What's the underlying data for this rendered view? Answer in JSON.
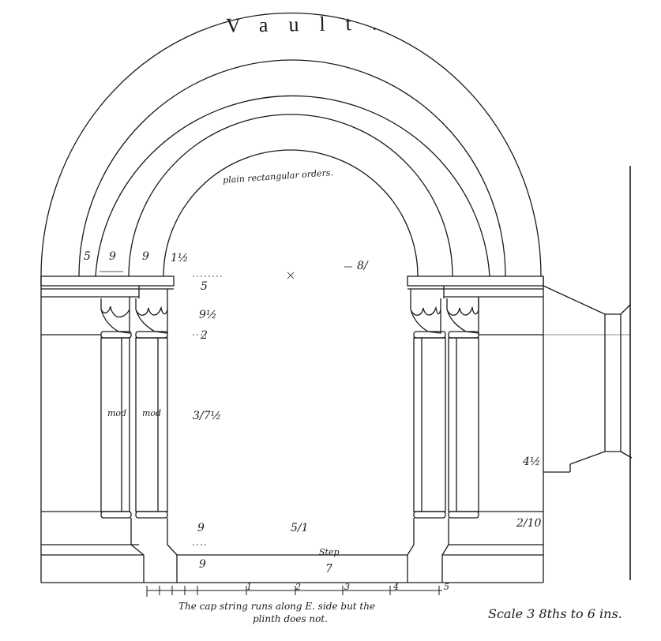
{
  "title": "Vault.",
  "orders_label": "plain rectangular orders.",
  "dims": {
    "arch_5": "5",
    "arch_9a": "9",
    "arch_9b": "9",
    "arch_1_5": "1½",
    "span": "8/",
    "abacus": "5",
    "bell": "9½",
    "astragal": "2",
    "shaft": "3/7½",
    "base": "9",
    "step_h": "9",
    "base_width": "5/1",
    "step_width": "7",
    "pier_right_a": "4½",
    "pier_right_b": "2/10"
  },
  "labels": {
    "mod_left": "mod",
    "mod_right": "mod",
    "step": "Step"
  },
  "scale_bar": {
    "ticks": [
      "1",
      "2",
      "3",
      "4",
      "5"
    ]
  },
  "note_line1": "The cap string runs along E. side but the",
  "note_line2": "plinth does not.",
  "scale_text": "Scale 3 8ths to 6 ins."
}
